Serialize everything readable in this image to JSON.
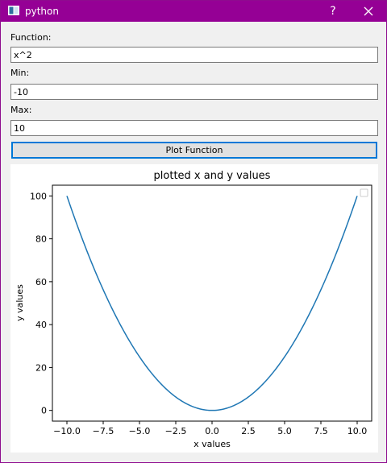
{
  "window": {
    "title": "python",
    "help_label": "?",
    "icons": {
      "app": "python-app-icon",
      "close": "close-icon"
    }
  },
  "form": {
    "function_label": "Function:",
    "function_value": "x^2",
    "min_label": "Min:",
    "min_value": "-10",
    "max_label": "Max:",
    "max_value": "10",
    "plot_button": "Plot Function"
  },
  "colors": {
    "titlebar": "#950095",
    "line": "#1f77b4",
    "button_focus": "#0078d7"
  },
  "chart_data": {
    "type": "line",
    "title": "plotted x and y values",
    "xlabel": "x values",
    "ylabel": "y values",
    "xlim": [
      -11,
      11
    ],
    "ylim": [
      -5,
      105
    ],
    "xticks": [
      -10,
      -7.5,
      -5,
      -2.5,
      0,
      2.5,
      5,
      7.5,
      10
    ],
    "xtick_labels": [
      "−10.0",
      "−7.5",
      "−5.0",
      "−2.5",
      "0.0",
      "2.5",
      "5.0",
      "7.5",
      "10.0"
    ],
    "yticks": [
      0,
      20,
      40,
      60,
      80,
      100
    ],
    "ytick_labels": [
      "0",
      "20",
      "40",
      "60",
      "80",
      "100"
    ],
    "series": [
      {
        "color": "#1f77b4",
        "x": [
          -10,
          -9,
          -8,
          -7,
          -6,
          -5,
          -4,
          -3,
          -2,
          -1,
          0,
          1,
          2,
          3,
          4,
          5,
          6,
          7,
          8,
          9,
          10
        ],
        "y": [
          100,
          81,
          64,
          49,
          36,
          25,
          16,
          9,
          4,
          1,
          0,
          1,
          4,
          9,
          16,
          25,
          36,
          49,
          64,
          81,
          100
        ]
      }
    ],
    "legend": "top-right",
    "grid": false
  }
}
